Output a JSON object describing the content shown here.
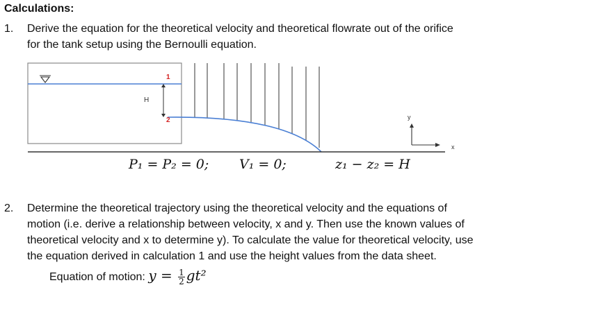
{
  "heading": "Calculations:",
  "items": [
    {
      "number": "1.",
      "lines": [
        "Derive the equation for the theoretical velocity and theoretical flowrate out of the orifice",
        "for the tank setup using the Bernoulli equation."
      ]
    },
    {
      "number": "2.",
      "lines": [
        "Determine the theoretical trajectory using the theoretical velocity and the equations of",
        "motion (i.e. derive a relationship between velocity, x and y. Then use the known values of",
        "theoretical velocity and x to determine y). To calculate the value for theoretical velocity, use",
        "the equation derived in calculation 1 and use the height values from the data sheet."
      ]
    }
  ],
  "diagram": {
    "point1_label": "1",
    "point2_label": "2",
    "height_label": "H",
    "axis_y_label": "y",
    "axis_x_label": "x",
    "water_line_color": "#4a7fd4",
    "point_label_color": "#d42020"
  },
  "equations": {
    "pressure": "P₁ = P₂ = 0;",
    "velocity": "V₁ = 0;",
    "elevation": "z₁ − z₂ = H"
  },
  "motion": {
    "label": "Equation of motion: ",
    "lhs": "y = ",
    "frac_num": "1",
    "frac_den": "2",
    "rhs": "gt²"
  }
}
